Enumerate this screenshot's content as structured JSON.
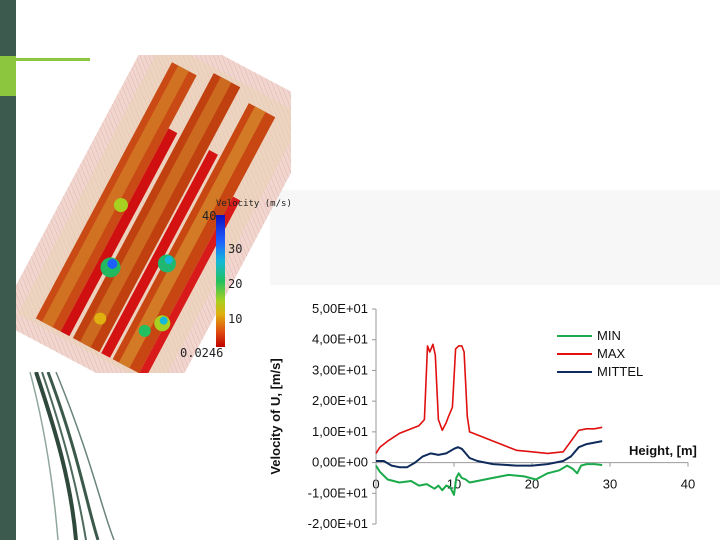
{
  "colorbar": {
    "title": "Velocity (m/s)",
    "ticks": [
      "40",
      "30",
      "20",
      "10"
    ],
    "min_label": "0.0246"
  },
  "chart_data": {
    "type": "line",
    "ylabel": "Velocity of U, [m/s]",
    "xlabel": "Height, [m]",
    "xlim": [
      0,
      40
    ],
    "ylim": [
      -20,
      50
    ],
    "x_ticks": [
      "0",
      "10",
      "20",
      "30",
      "40"
    ],
    "y_ticks": [
      "5,00E+01",
      "4,00E+01",
      "3,00E+01",
      "2,00E+01",
      "1,00E+01",
      "0,00E+00",
      "-1,00E+01",
      "-2,00E+01"
    ],
    "legend_position": "top-right",
    "series": [
      {
        "name": "MIN",
        "color": "#1aaa4a",
        "x": [
          0,
          0.5,
          1.5,
          3,
          4.5,
          5.5,
          6.5,
          7.5,
          8,
          8.5,
          9,
          9.5,
          10,
          10.3,
          10.6,
          11,
          11.5,
          12,
          13,
          15,
          17,
          19,
          20.5,
          22,
          23.5,
          24.5,
          25.2,
          25.8,
          26.3,
          27,
          28,
          29
        ],
        "y": [
          -1,
          -3,
          -5.5,
          -6.5,
          -6,
          -7.5,
          -7,
          -8.5,
          -7.5,
          -9,
          -7.5,
          -8,
          -10.5,
          -5,
          -3.5,
          -5,
          -5.5,
          -6.5,
          -6,
          -5,
          -4,
          -4.5,
          -5.5,
          -3.5,
          -2.5,
          -1,
          -2,
          -3.5,
          -1,
          -0.5,
          -0.5,
          -0.8
        ]
      },
      {
        "name": "MAX",
        "color": "#e01010",
        "x": [
          0,
          0.5,
          1.5,
          3,
          4.5,
          5.5,
          6.2,
          6.6,
          6.9,
          7.3,
          7.6,
          8,
          8.5,
          9,
          9.3,
          9.8,
          10.2,
          10.6,
          11,
          11.3,
          11.7,
          12,
          12.5,
          14,
          16,
          18,
          20,
          22,
          24,
          25,
          26,
          27,
          28,
          29
        ],
        "y": [
          3,
          5,
          7,
          9.5,
          11,
          12,
          14,
          38,
          36,
          38.5,
          35,
          14,
          10.5,
          13,
          15,
          18,
          37,
          38,
          38,
          36,
          15,
          10,
          9.5,
          8,
          6,
          4,
          3.5,
          3,
          3.5,
          7,
          10.5,
          11,
          11,
          11.5
        ]
      },
      {
        "name": "MITTEL",
        "color": "#0f2b5c",
        "x": [
          0,
          1,
          2,
          3,
          4,
          5,
          6,
          7,
          8,
          9,
          10,
          10.5,
          11,
          11.5,
          12,
          13,
          15,
          18,
          20,
          22,
          24,
          25,
          26,
          27,
          28,
          29
        ],
        "y": [
          0.5,
          0.5,
          -1,
          -1.5,
          -1.5,
          0,
          2,
          3,
          2.5,
          3,
          4.5,
          5,
          4.5,
          3,
          1.5,
          0.5,
          -0.5,
          -1,
          -1,
          -0.5,
          0.5,
          2,
          5,
          6,
          6.5,
          7
        ]
      }
    ]
  }
}
